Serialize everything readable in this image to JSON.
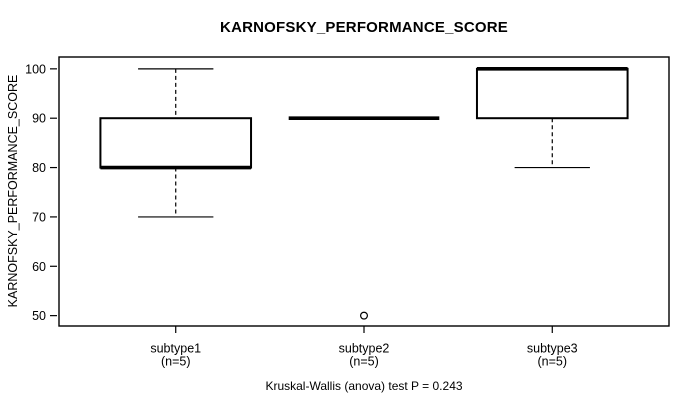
{
  "chart_data": {
    "type": "boxplot",
    "title": "KARNOFSKY_PERFORMANCE_SCORE",
    "xlabel": "",
    "ylabel": "KARNOFSKY_PERFORMANCE_SCORE",
    "footnote": "Kruskal-Wallis (anova) test P = 0.243",
    "categories": [
      "subtype1",
      "subtype2",
      "subtype3"
    ],
    "category_counts": [
      "(n=5)",
      "(n=5)",
      "(n=5)"
    ],
    "yticks": [
      50,
      60,
      70,
      80,
      90,
      100
    ],
    "ylim": [
      47.9,
      102.4
    ],
    "xlim": [
      0.38,
      3.62
    ],
    "box_width": 0.8,
    "staple_width": 0.4,
    "grid": false,
    "legend": "none",
    "line_color": "#000000",
    "box_fill": "#ffffff",
    "background": "#ffffff",
    "groups": [
      {
        "label": "subtype1",
        "count_label": "(n=5)",
        "position": 1,
        "whisker_low": 70,
        "q1": 80,
        "median": 80,
        "q3": 90,
        "whisker_high": 100,
        "outliers": []
      },
      {
        "label": "subtype2",
        "count_label": "(n=5)",
        "position": 2,
        "whisker_low": 90,
        "q1": 90,
        "median": 90,
        "q3": 90,
        "whisker_high": 90,
        "outliers": [
          50
        ]
      },
      {
        "label": "subtype3",
        "count_label": "(n=5)",
        "position": 3,
        "whisker_low": 80,
        "q1": 90,
        "median": 100,
        "q3": 100,
        "whisker_high": 100,
        "outliers": []
      }
    ]
  }
}
